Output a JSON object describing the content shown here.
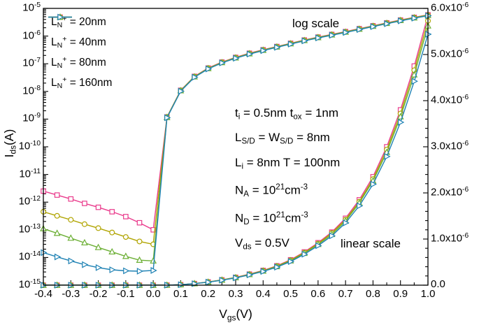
{
  "chart_data": {
    "type": "line",
    "description": "Transfer characteristics Ids vs Vgs plotted on both log (left) and linear (right) axes",
    "grid": false,
    "legend_position": "top-left",
    "x_axis": {
      "label": "V_{gs}(V)",
      "min": -0.4,
      "max": 1.0,
      "tick_values": [
        -0.4,
        -0.3,
        -0.2,
        -0.1,
        0.0,
        0.1,
        0.2,
        0.3,
        0.4,
        0.5,
        0.6,
        0.7,
        0.8,
        0.9,
        1.0
      ],
      "tick_labels": [
        "-0.4",
        "-0.3",
        "-0.2",
        "-0.1",
        "0.0",
        "0.1",
        "0.2",
        "0.3",
        "0.4",
        "0.5",
        "0.6",
        "0.7",
        "0.8",
        "0.9",
        "1.0"
      ],
      "minor_step": 0.05
    },
    "y_left": {
      "label": "I_{ds}(A)",
      "scale": "log",
      "max_exp": -5,
      "min_exp": -15,
      "tick_exps": [
        -5,
        -6,
        -7,
        -8,
        -9,
        -10,
        -11,
        -12,
        -13,
        -14,
        -15
      ],
      "tick_labels": [
        "10^{-5}",
        "10^{-6}",
        "10^{-7}",
        "10^{-8}",
        "10^{-9}",
        "10^{-10}",
        "10^{-11}",
        "10^{-12}",
        "10^{-13}",
        "10^{-14}",
        "10^{-15}"
      ]
    },
    "y_right": {
      "scale": "linear",
      "min": 0,
      "max": 6e-06,
      "tick_values": [
        0,
        1e-06,
        2e-06,
        3e-06,
        4e-06,
        5e-06,
        6e-06
      ],
      "tick_labels": [
        "0.0",
        "1.0x10^{-6}",
        "2.0x10^{-6}",
        "3.0x10^{-6}",
        "4.0x10^{-6}",
        "5.0x10^{-6}",
        "6.0x10^{-6}"
      ],
      "minor_step": 2e-07
    },
    "x": [
      -0.4,
      -0.35,
      -0.3,
      -0.25,
      -0.2,
      -0.15,
      -0.1,
      -0.05,
      0.0,
      0.05,
      0.1,
      0.15,
      0.2,
      0.25,
      0.3,
      0.35,
      0.4,
      0.45,
      0.5,
      0.55,
      0.6,
      0.65,
      0.7,
      0.75,
      0.8,
      0.85,
      0.9,
      0.95,
      1.0
    ],
    "series": [
      {
        "name": "L_{N}^{+} = 20nm",
        "color": "#ea3b8c",
        "marker": "square",
        "values": [
          2.5e-12,
          1.8e-12,
          1.3e-12,
          9e-13,
          6.5e-13,
          4.5e-13,
          3e-13,
          1.8e-13,
          1e-13,
          1.2e-09,
          1.1e-08,
          3.5e-08,
          7e-08,
          1.15e-07,
          1.7e-07,
          2.4e-07,
          3.2e-07,
          4.2e-07,
          5.5e-07,
          7.2e-07,
          9.2e-07,
          1.15e-06,
          1.45e-06,
          1.85e-06,
          2.35e-06,
          3e-06,
          3.8e-06,
          4.75e-06,
          5.85e-06
        ]
      },
      {
        "name": "L_{N}^{+} = 40nm",
        "color": "#b0a400",
        "marker": "circle",
        "values": [
          4.5e-13,
          3.2e-13,
          2.3e-13,
          1.6e-13,
          1.15e-13,
          8e-14,
          5.5e-14,
          3.8e-14,
          3e-14,
          1.18e-09,
          1.08e-08,
          3.43e-08,
          6.86e-08,
          1.13e-07,
          1.67e-07,
          2.35e-07,
          3.14e-07,
          4.12e-07,
          5.39e-07,
          7.06e-07,
          9.02e-07,
          1.13e-06,
          1.42e-06,
          1.81e-06,
          2.3e-06,
          2.94e-06,
          3.72e-06,
          4.66e-06,
          5.73e-06
        ]
      },
      {
        "name": "L_{N}^{+} = 80nm",
        "color": "#6caf35",
        "marker": "triangle-up",
        "values": [
          1.1e-13,
          7.5e-14,
          5e-14,
          3.4e-14,
          2.3e-14,
          1.6e-14,
          1.1e-14,
          8e-15,
          7.5e-15,
          1.15e-09,
          1.06e-08,
          3.36e-08,
          6.72e-08,
          1.1e-07,
          1.63e-07,
          2.3e-07,
          3.07e-07,
          4.03e-07,
          5.28e-07,
          6.91e-07,
          8.83e-07,
          1.1e-06,
          1.39e-06,
          1.78e-06,
          2.26e-06,
          2.88e-06,
          3.65e-06,
          4.56e-06,
          5.62e-06
        ]
      },
      {
        "name": "L_{N}^{+} = 160nm",
        "color": "#1f82b4",
        "marker": "triangle-right",
        "values": [
          1.5e-14,
          1.05e-14,
          7.5e-15,
          5.5e-15,
          4.3e-15,
          3.6e-15,
          3.3e-15,
          3.2e-15,
          3.4e-15,
          1.12e-09,
          1.02e-08,
          3.26e-08,
          6.51e-08,
          1.07e-07,
          1.58e-07,
          2.23e-07,
          2.98e-07,
          3.91e-07,
          5.12e-07,
          6.7e-07,
          8.56e-07,
          1.07e-06,
          1.35e-06,
          1.72e-06,
          2.19e-06,
          2.79e-06,
          3.53e-06,
          4.42e-06,
          5.44e-06
        ]
      }
    ],
    "annotations": {
      "log_scale": "log scale",
      "linear_scale": "linear scale",
      "parameters": [
        "t_{i} = 0.5nm t_{ox} = 1nm",
        "L_{S/D} = W_{S/D} = 8nm",
        "L_{i} = 8nm T = 100nm",
        "N_{A} = 10^{21}cm^{-3}",
        "N_{D} = 10^{21}cm^{-3}",
        "V_{ds} = 0.5V"
      ]
    },
    "colors": {
      "axis": "#000000",
      "background": "#ffffff"
    }
  }
}
